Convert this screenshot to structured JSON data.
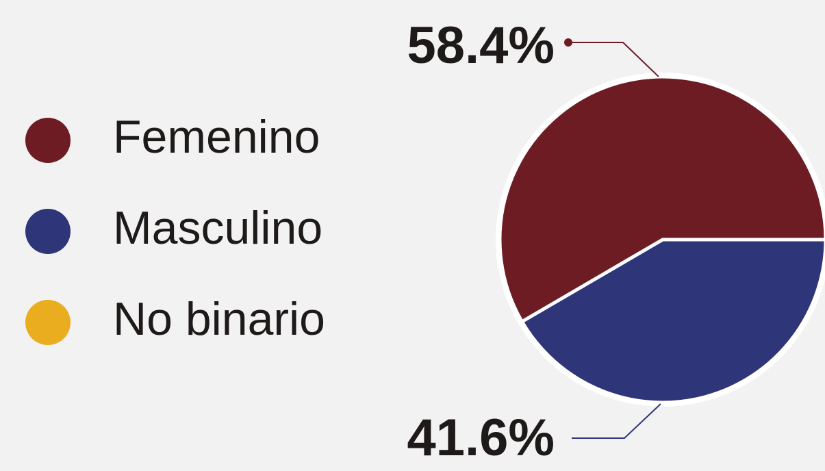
{
  "chart_data": {
    "type": "pie",
    "categories": [
      "Femenino",
      "Masculino",
      "No binario"
    ],
    "values": [
      58.4,
      41.6,
      0
    ],
    "value_labels": [
      "58.4%",
      "41.6%",
      null
    ],
    "colors": [
      "#6d1c24",
      "#2e3578",
      "#eaad1f"
    ],
    "legend": "left"
  }
}
